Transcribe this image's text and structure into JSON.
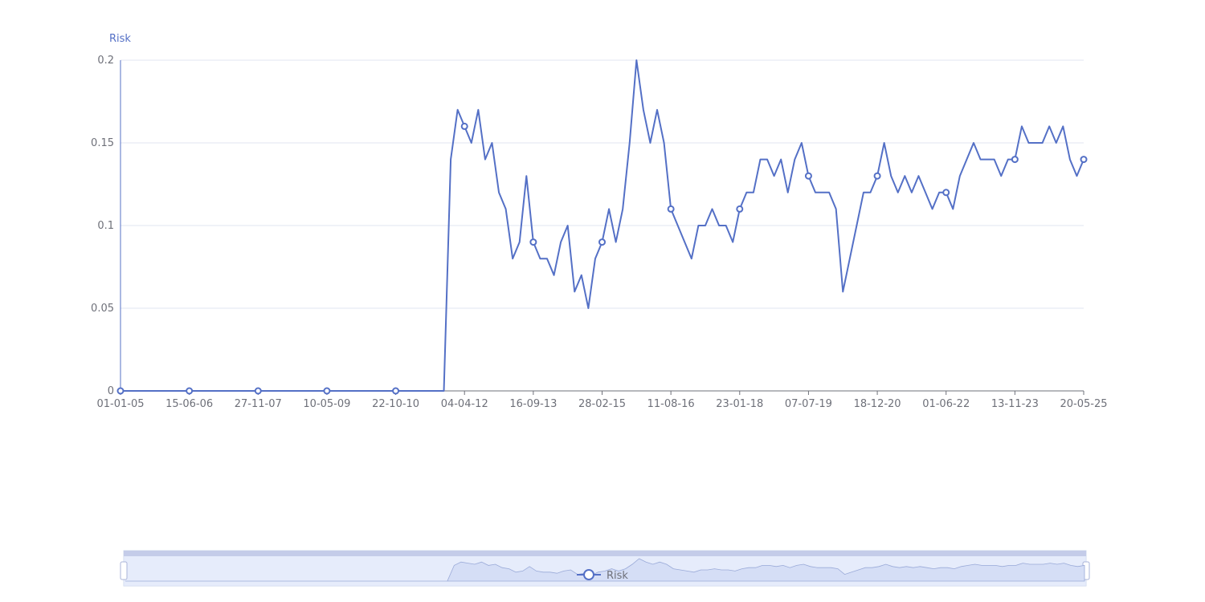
{
  "chart_data": {
    "type": "line",
    "y_axis_label": "Risk",
    "categories": [
      "01-01-05",
      null,
      null,
      null,
      null,
      null,
      null,
      null,
      null,
      null,
      "15-06-06",
      null,
      null,
      null,
      null,
      null,
      null,
      null,
      null,
      null,
      "27-11-07",
      null,
      null,
      null,
      null,
      null,
      null,
      null,
      null,
      null,
      "10-05-09",
      null,
      null,
      null,
      null,
      null,
      null,
      null,
      null,
      null,
      "22-10-10",
      null,
      null,
      null,
      null,
      null,
      null,
      null,
      null,
      null,
      "04-04-12",
      null,
      null,
      null,
      null,
      null,
      null,
      null,
      null,
      null,
      "16-09-13",
      null,
      null,
      null,
      null,
      null,
      null,
      null,
      null,
      null,
      "28-02-15",
      null,
      null,
      null,
      null,
      null,
      null,
      null,
      null,
      null,
      "11-08-16",
      null,
      null,
      null,
      null,
      null,
      null,
      null,
      null,
      null,
      "23-01-18",
      null,
      null,
      null,
      null,
      null,
      null,
      null,
      null,
      null,
      "07-07-19",
      null,
      null,
      null,
      null,
      null,
      null,
      null,
      null,
      null,
      "18-12-20",
      null,
      null,
      null,
      null,
      null,
      null,
      null,
      null,
      null,
      "01-06-22",
      null,
      null,
      null,
      null,
      null,
      null,
      null,
      null,
      null,
      "13-11-23",
      null,
      null,
      null,
      null,
      null,
      null,
      null,
      null,
      null,
      "20-05-25"
    ],
    "series": [
      {
        "name": "Risk",
        "color": "#5470c6",
        "values": [
          0,
          0,
          0,
          0,
          0,
          0,
          0,
          0,
          0,
          0,
          0,
          0,
          0,
          0,
          0,
          0,
          0,
          0,
          0,
          0,
          0,
          0,
          0,
          0,
          0,
          0,
          0,
          0,
          0,
          0,
          0,
          0,
          0,
          0,
          0,
          0,
          0,
          0,
          0,
          0,
          0,
          0,
          0,
          0,
          0,
          0,
          0,
          0,
          0.14,
          0.17,
          0.16,
          0.15,
          0.17,
          0.14,
          0.15,
          0.12,
          0.11,
          0.08,
          0.09,
          0.13,
          0.09,
          0.08,
          0.08,
          0.07,
          0.09,
          0.1,
          0.06,
          0.07,
          0.05,
          0.08,
          0.09,
          0.11,
          0.09,
          0.11,
          0.15,
          0.2,
          0.17,
          0.15,
          0.17,
          0.15,
          0.11,
          0.1,
          0.09,
          0.08,
          0.1,
          0.1,
          0.11,
          0.1,
          0.1,
          0.09,
          0.11,
          0.12,
          0.12,
          0.14,
          0.14,
          0.13,
          0.14,
          0.12,
          0.14,
          0.15,
          0.13,
          0.12,
          0.12,
          0.12,
          0.11,
          0.06,
          0.08,
          0.1,
          0.12,
          0.12,
          0.13,
          0.15,
          0.13,
          0.12,
          0.13,
          0.12,
          0.13,
          0.12,
          0.11,
          0.12,
          0.12,
          0.11,
          0.13,
          0.14,
          0.15,
          0.14,
          0.14,
          0.14,
          0.13,
          0.14,
          0.14,
          0.16,
          0.15,
          0.15,
          0.15,
          0.16,
          0.15,
          0.16,
          0.14,
          0.13,
          0.14
        ]
      }
    ],
    "ylim": [
      0,
      0.2
    ],
    "yticks": [
      0,
      0.05,
      0.1,
      0.15,
      0.2
    ],
    "grid": true
  }
}
